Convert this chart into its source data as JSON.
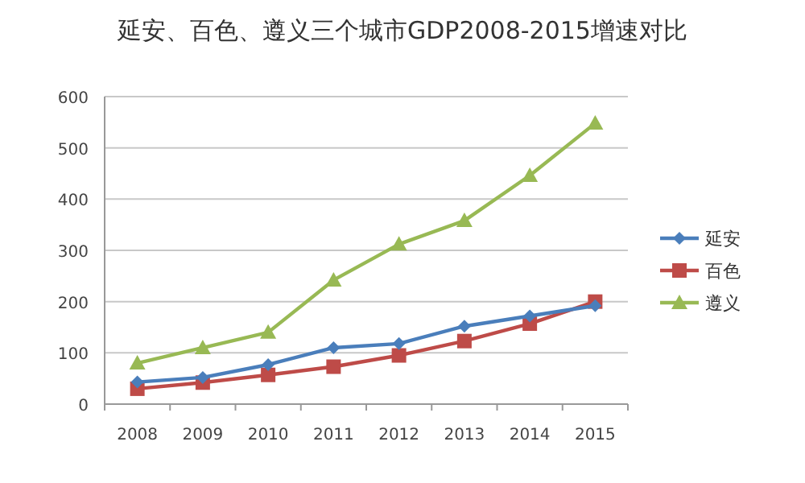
{
  "chart_data": {
    "type": "line",
    "title": "延安、百色、遵义三个城市GDP2008-2015增速对比",
    "categories": [
      "2008",
      "2009",
      "2010",
      "2011",
      "2012",
      "2013",
      "2014",
      "2015"
    ],
    "series": [
      {
        "name": "延安",
        "color": "#4a7ebb",
        "marker": "diamond",
        "values": [
          43,
          52,
          77,
          110,
          118,
          152,
          172,
          192
        ]
      },
      {
        "name": "百色",
        "color": "#be4b48",
        "marker": "square",
        "values": [
          30,
          42,
          57,
          73,
          95,
          123,
          157,
          200
        ]
      },
      {
        "name": "遵义",
        "color": "#98b954",
        "marker": "triangle",
        "values": [
          80,
          110,
          140,
          242,
          312,
          358,
          446,
          548
        ]
      }
    ],
    "ylim": [
      0,
      600
    ],
    "yticks": [
      0,
      100,
      200,
      300,
      400,
      500,
      600
    ],
    "grid": "y",
    "legend": "right"
  }
}
